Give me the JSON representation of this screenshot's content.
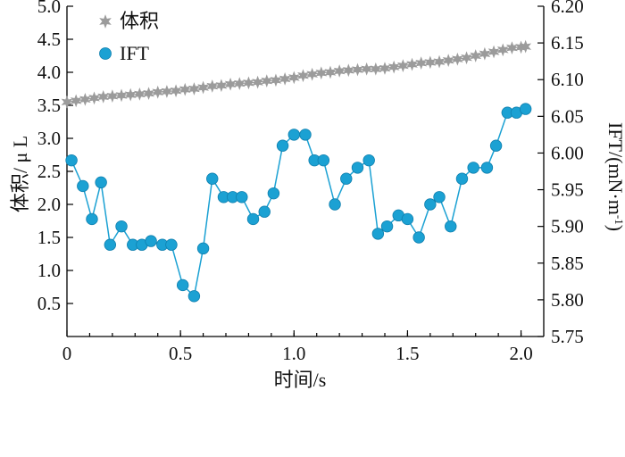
{
  "chart_data": {
    "type": "line",
    "xlabel": "时间/s",
    "ylabel_left": "体积/ μ L",
    "ylabel_right": "IFT/(mN·m",
    "ylabel_right_sup": "-1",
    "ylabel_right_close": ")",
    "xlim": [
      0,
      2.1
    ],
    "ylim_left": [
      0,
      5.0
    ],
    "ylim_right": [
      5.75,
      6.2
    ],
    "x_ticks": [
      "0",
      "0.5",
      "1.0",
      "1.5",
      "2.0"
    ],
    "y_left_ticks": [
      "0.5",
      "1.0",
      "1.5",
      "2.0",
      "2.5",
      "3.0",
      "3.5",
      "4.0",
      "4.5",
      "5.0"
    ],
    "y_right_ticks": [
      "5.75",
      "5.80",
      "5.85",
      "5.90",
      "5.95",
      "6.00",
      "6.05",
      "6.10",
      "6.15",
      "6.20"
    ],
    "legend_position": "top-left",
    "series": [
      {
        "name": "体积",
        "axis": "left",
        "marker": "star",
        "color": "#9b9b9b",
        "x": [
          0.0,
          0.04,
          0.08,
          0.12,
          0.16,
          0.2,
          0.24,
          0.28,
          0.32,
          0.36,
          0.4,
          0.44,
          0.48,
          0.52,
          0.56,
          0.6,
          0.64,
          0.68,
          0.72,
          0.76,
          0.8,
          0.84,
          0.88,
          0.92,
          0.96,
          1.0,
          1.04,
          1.08,
          1.12,
          1.16,
          1.2,
          1.24,
          1.28,
          1.32,
          1.36,
          1.4,
          1.44,
          1.48,
          1.52,
          1.56,
          1.6,
          1.64,
          1.68,
          1.72,
          1.76,
          1.8,
          1.84,
          1.88,
          1.92,
          1.96,
          2.0,
          2.02
        ],
        "values": [
          3.55,
          3.57,
          3.59,
          3.61,
          3.63,
          3.64,
          3.65,
          3.66,
          3.67,
          3.68,
          3.7,
          3.71,
          3.72,
          3.74,
          3.75,
          3.77,
          3.79,
          3.8,
          3.82,
          3.83,
          3.84,
          3.85,
          3.87,
          3.88,
          3.9,
          3.92,
          3.95,
          3.97,
          3.99,
          4.0,
          4.02,
          4.03,
          4.04,
          4.05,
          4.05,
          4.06,
          4.08,
          4.1,
          4.12,
          4.14,
          4.15,
          4.16,
          4.18,
          4.2,
          4.22,
          4.25,
          4.28,
          4.31,
          4.34,
          4.37,
          4.38,
          4.39
        ]
      },
      {
        "name": "IFT",
        "axis": "right",
        "marker": "circle",
        "color": "#1ba1d3",
        "x": [
          0.02,
          0.07,
          0.11,
          0.15,
          0.19,
          0.24,
          0.29,
          0.33,
          0.37,
          0.42,
          0.46,
          0.51,
          0.56,
          0.6,
          0.64,
          0.69,
          0.73,
          0.77,
          0.82,
          0.87,
          0.91,
          0.95,
          1.0,
          1.05,
          1.09,
          1.13,
          1.18,
          1.23,
          1.28,
          1.33,
          1.37,
          1.41,
          1.46,
          1.5,
          1.55,
          1.6,
          1.64,
          1.69,
          1.74,
          1.79,
          1.85,
          1.89,
          1.94,
          1.98,
          2.02
        ],
        "values": [
          5.99,
          5.955,
          5.91,
          5.96,
          5.875,
          5.9,
          5.875,
          5.875,
          5.88,
          5.875,
          5.875,
          5.82,
          5.805,
          5.87,
          5.965,
          5.94,
          5.94,
          5.94,
          5.91,
          5.92,
          5.945,
          6.01,
          6.025,
          6.025,
          5.99,
          5.99,
          5.93,
          5.965,
          5.98,
          5.99,
          5.89,
          5.9,
          5.915,
          5.91,
          5.885,
          5.93,
          5.94,
          5.9,
          5.965,
          5.98,
          5.98,
          6.01,
          6.055,
          6.055,
          6.06
        ]
      }
    ]
  }
}
